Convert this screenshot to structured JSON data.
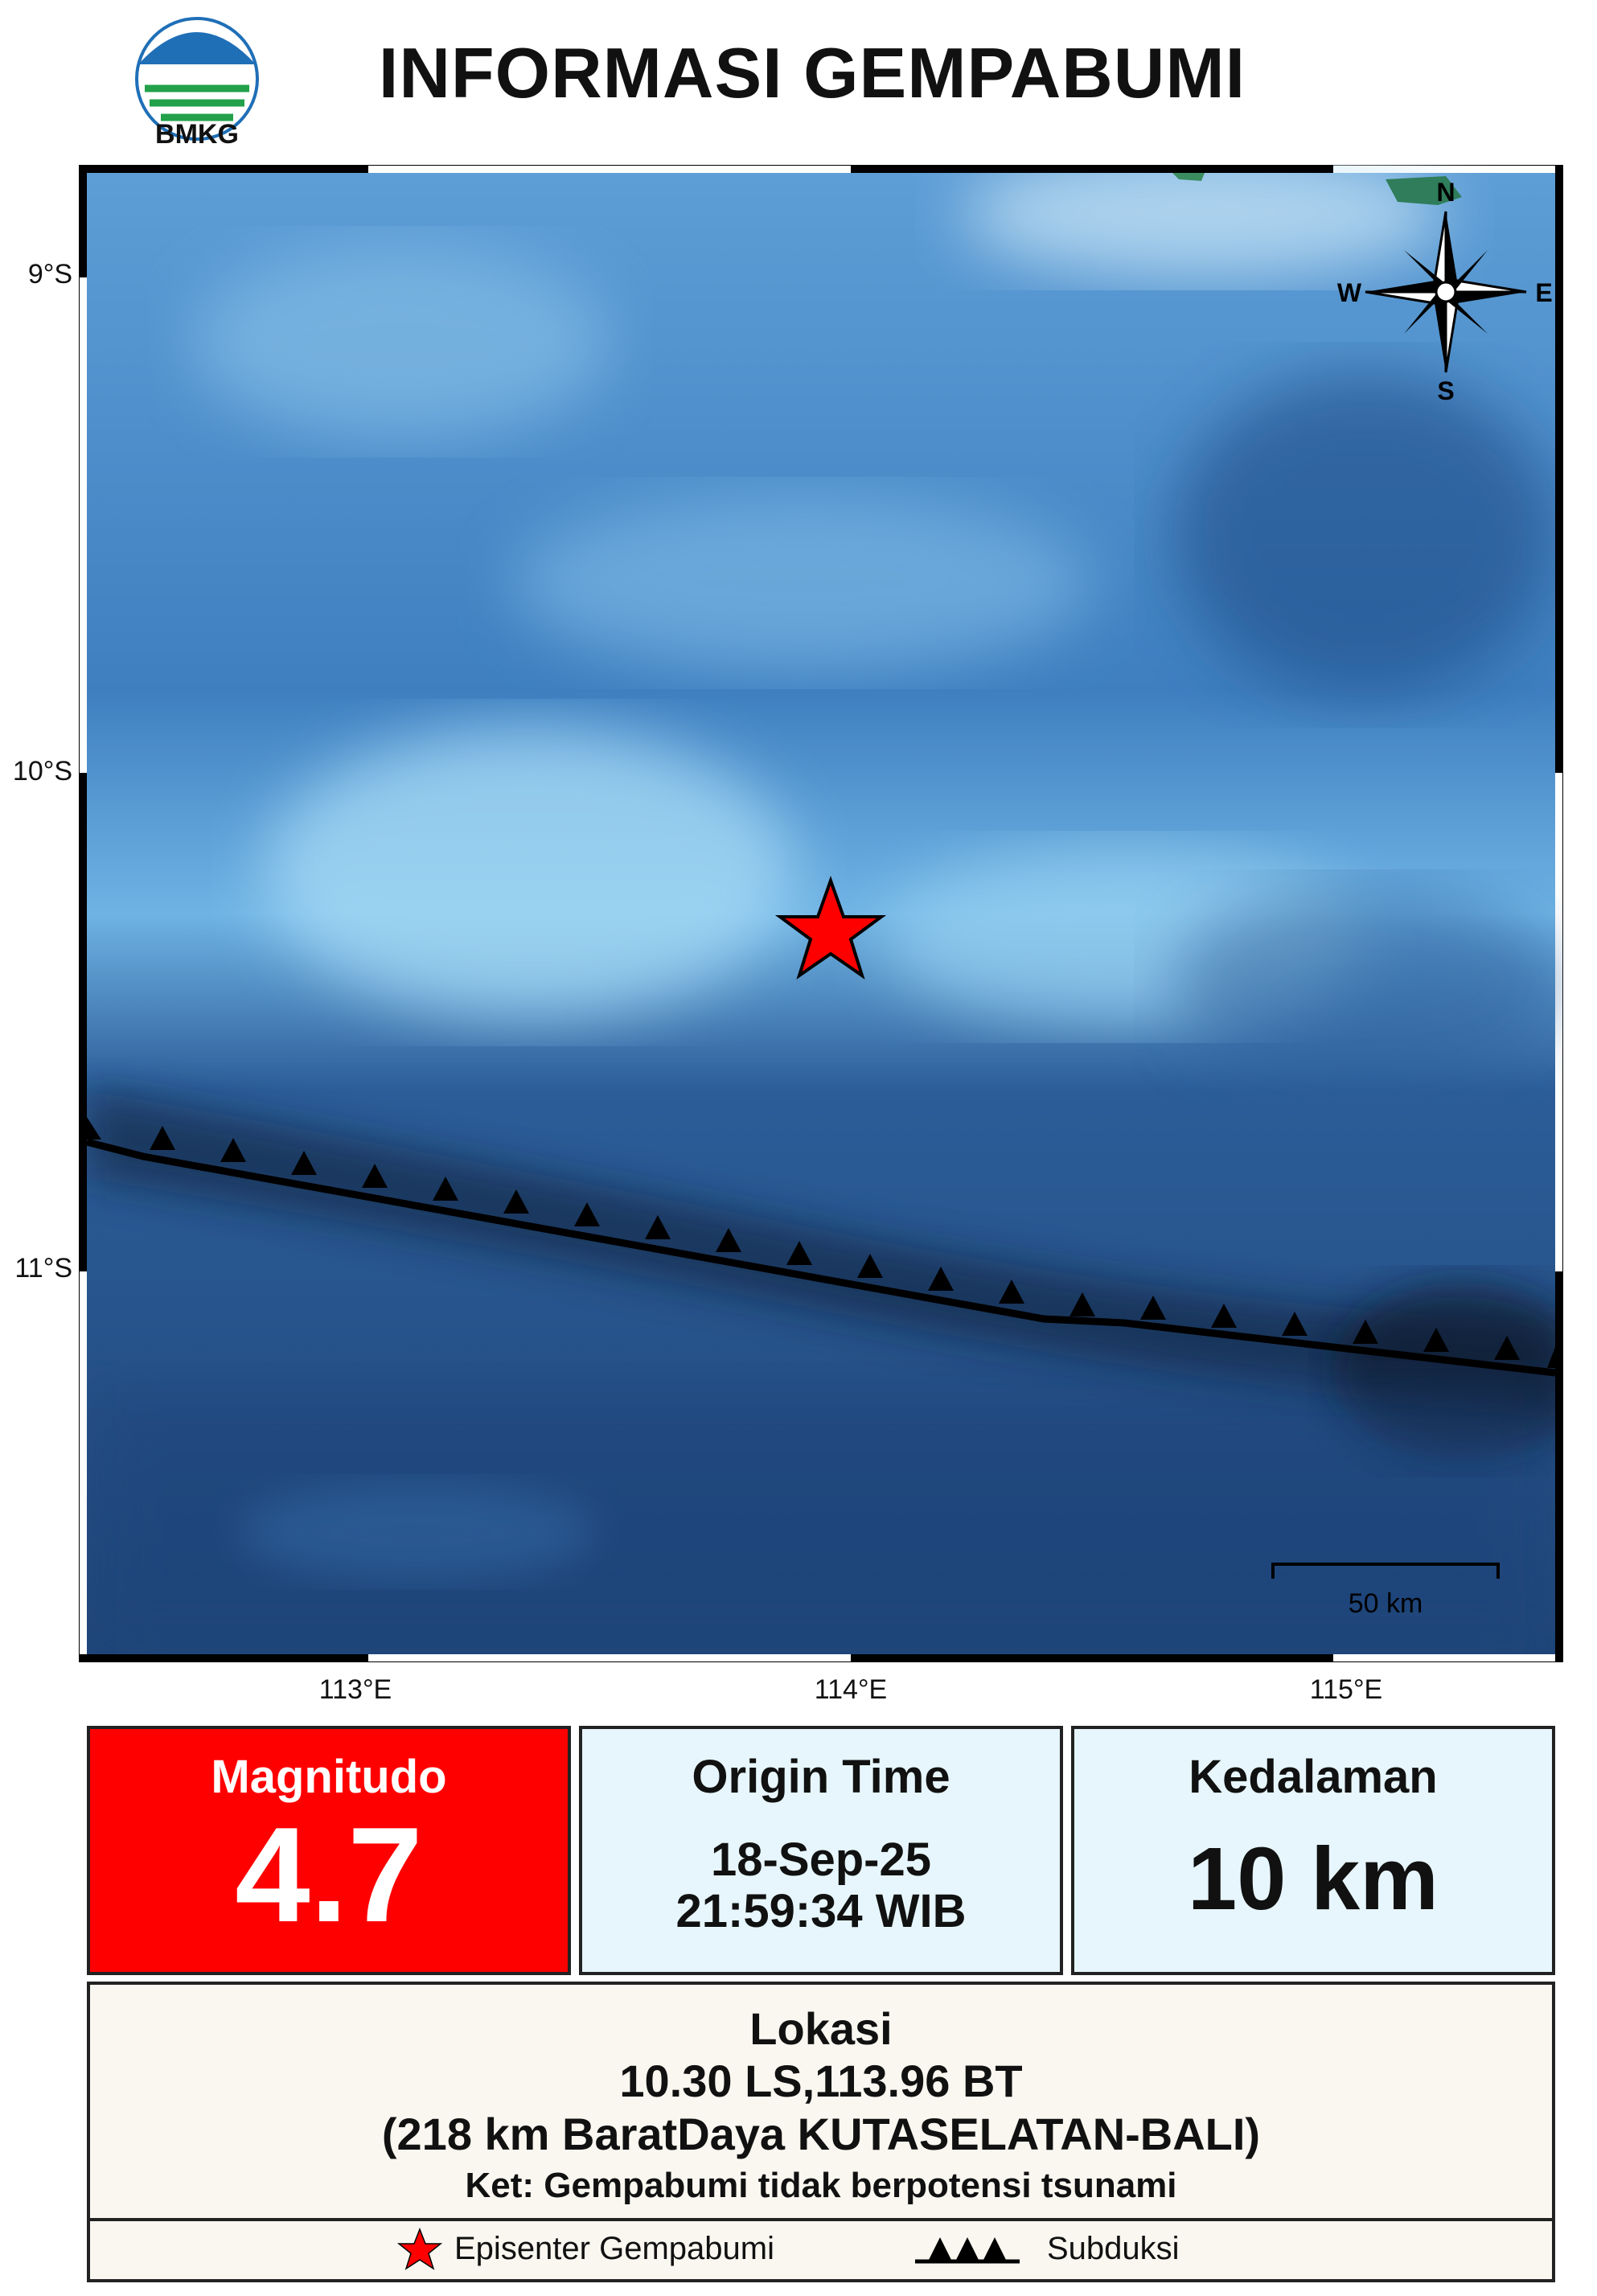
{
  "header": {
    "logo_text": "BMKG",
    "title": "INFORMASI GEMPABUMI"
  },
  "map": {
    "lat_labels": [
      "9°S",
      "10°S",
      "11°S"
    ],
    "lon_labels": [
      "113°E",
      "114°E",
      "115°E"
    ],
    "compass": {
      "n": "N",
      "s": "S",
      "e": "E",
      "w": "W"
    },
    "scale_label": "50 km",
    "epicenter_marker_color": "#ff0000"
  },
  "info": {
    "magnitude_label": "Magnitudo",
    "magnitude_value": "4.7",
    "origin_label": "Origin Time",
    "origin_date": "18-Sep-25",
    "origin_time": "21:59:34 WIB",
    "depth_label": "Kedalaman",
    "depth_value": "10 km"
  },
  "location": {
    "label": "Lokasi",
    "coordinates": "10.30 LS,113.96 BT",
    "description": "(218 km BaratDaya KUTASELATAN-BALI)",
    "note": "Ket: Gempabumi tidak berpotensi tsunami"
  },
  "legend": {
    "epicenter": "Episenter Gempabumi",
    "subduction": "Subduksi"
  },
  "colors": {
    "magnitude_bg": "#ff0000",
    "panel_bg": "#e6f6fc",
    "location_bg": "#f9f7f0",
    "sea_deep": "#1d4f86",
    "sea_shallow": "#8fd1f2"
  }
}
